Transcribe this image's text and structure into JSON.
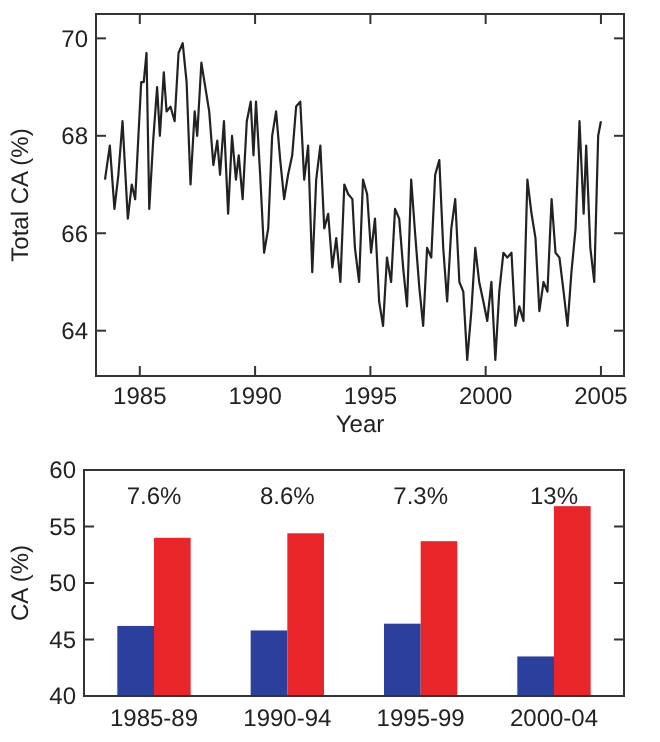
{
  "chart_data": [
    {
      "type": "line",
      "xlabel": "Year",
      "ylabel": "Total CA (%)",
      "color": "#222222",
      "xlim": [
        1983.1,
        2006.0
      ],
      "ylim": [
        63.07,
        70.5
      ],
      "xticks": [
        1985,
        1990,
        1995,
        2000,
        2005
      ],
      "yticks": [
        64,
        66,
        68,
        70
      ],
      "x": [
        1983.49,
        1983.7,
        1983.9,
        1984.07,
        1984.25,
        1984.48,
        1984.65,
        1984.8,
        1984.94,
        1985.06,
        1985.17,
        1985.29,
        1985.41,
        1985.58,
        1985.75,
        1985.87,
        1986.04,
        1986.16,
        1986.33,
        1986.51,
        1986.68,
        1986.86,
        1987.03,
        1987.2,
        1987.38,
        1987.49,
        1987.67,
        1987.84,
        1988.01,
        1988.19,
        1988.36,
        1988.48,
        1988.65,
        1988.83,
        1989.0,
        1989.17,
        1989.29,
        1989.46,
        1989.64,
        1989.81,
        1989.93,
        1990.04,
        1990.22,
        1990.39,
        1990.57,
        1990.74,
        1990.91,
        1991.09,
        1991.26,
        1991.43,
        1991.61,
        1991.78,
        1991.96,
        1992.13,
        1992.3,
        1992.48,
        1992.65,
        1992.83,
        1993.0,
        1993.17,
        1993.35,
        1993.52,
        1993.7,
        1993.87,
        1994.04,
        1994.22,
        1994.33,
        1994.51,
        1994.68,
        1994.86,
        1995.03,
        1995.2,
        1995.38,
        1995.55,
        1995.72,
        1995.9,
        1996.07,
        1996.25,
        1996.42,
        1996.59,
        1996.77,
        1996.94,
        1997.12,
        1997.29,
        1997.46,
        1997.64,
        1997.81,
        1997.99,
        1998.16,
        1998.33,
        1998.51,
        1998.68,
        1998.86,
        1999.03,
        1999.2,
        1999.38,
        1999.55,
        1999.72,
        1999.9,
        2000.07,
        2000.25,
        2000.42,
        2000.59,
        2000.77,
        2000.94,
        2001.12,
        2001.29,
        2001.46,
        2001.64,
        2001.81,
        2001.99,
        2002.16,
        2002.33,
        2002.51,
        2002.68,
        2002.86,
        2003.03,
        2003.2,
        2003.38,
        2003.55,
        2003.72,
        2003.9,
        2004.07,
        2004.25,
        2004.36,
        2004.54,
        2004.71,
        2004.88,
        2005.0
      ],
      "values": [
        67.1,
        67.8,
        66.5,
        67.2,
        68.3,
        66.3,
        67.0,
        66.7,
        68.0,
        69.1,
        69.1,
        69.7,
        66.5,
        67.9,
        69.0,
        68.0,
        69.3,
        68.5,
        68.6,
        68.3,
        69.7,
        69.9,
        69.1,
        67.0,
        68.5,
        68.0,
        69.5,
        69.0,
        68.5,
        67.4,
        67.9,
        67.2,
        68.3,
        66.4,
        68.0,
        67.1,
        67.6,
        66.7,
        68.3,
        68.7,
        67.6,
        68.7,
        67.2,
        65.6,
        66.1,
        68.0,
        68.5,
        67.5,
        66.7,
        67.2,
        67.6,
        68.6,
        68.7,
        67.1,
        67.8,
        65.2,
        67.1,
        67.8,
        66.1,
        66.4,
        65.3,
        65.9,
        65.0,
        67.0,
        66.8,
        66.7,
        65.7,
        65.0,
        67.1,
        66.8,
        65.6,
        66.3,
        64.6,
        64.1,
        65.5,
        65.0,
        66.5,
        66.3,
        65.3,
        64.5,
        67.1,
        66.0,
        64.9,
        64.1,
        65.7,
        65.5,
        67.2,
        67.5,
        65.7,
        64.6,
        66.1,
        66.7,
        65.0,
        64.8,
        63.4,
        64.4,
        65.7,
        65.0,
        64.6,
        64.2,
        65.0,
        63.4,
        64.8,
        65.6,
        65.5,
        65.6,
        64.1,
        64.5,
        64.2,
        67.1,
        66.4,
        65.9,
        64.4,
        65.0,
        64.8,
        66.7,
        65.6,
        65.5,
        64.8,
        64.1,
        65.2,
        66.1,
        68.3,
        66.4,
        67.8,
        65.7,
        65.0,
        68.0,
        68.3
      ]
    },
    {
      "type": "bar",
      "ylabel": "CA (%)",
      "categories": [
        "1985-89",
        "1990-94",
        "1995-99",
        "2000-04"
      ],
      "ylim": [
        40,
        60
      ],
      "yticks": [
        40,
        45,
        50,
        55,
        60
      ],
      "series": [
        {
          "color": "#2b3f9c",
          "values": [
            46.2,
            45.8,
            46.4,
            43.5
          ]
        },
        {
          "color": "#e8262a",
          "values": [
            54.0,
            54.4,
            53.7,
            56.8
          ]
        }
      ],
      "annotations": [
        "7.6%",
        "8.6%",
        "7.3%",
        "13%"
      ]
    }
  ]
}
